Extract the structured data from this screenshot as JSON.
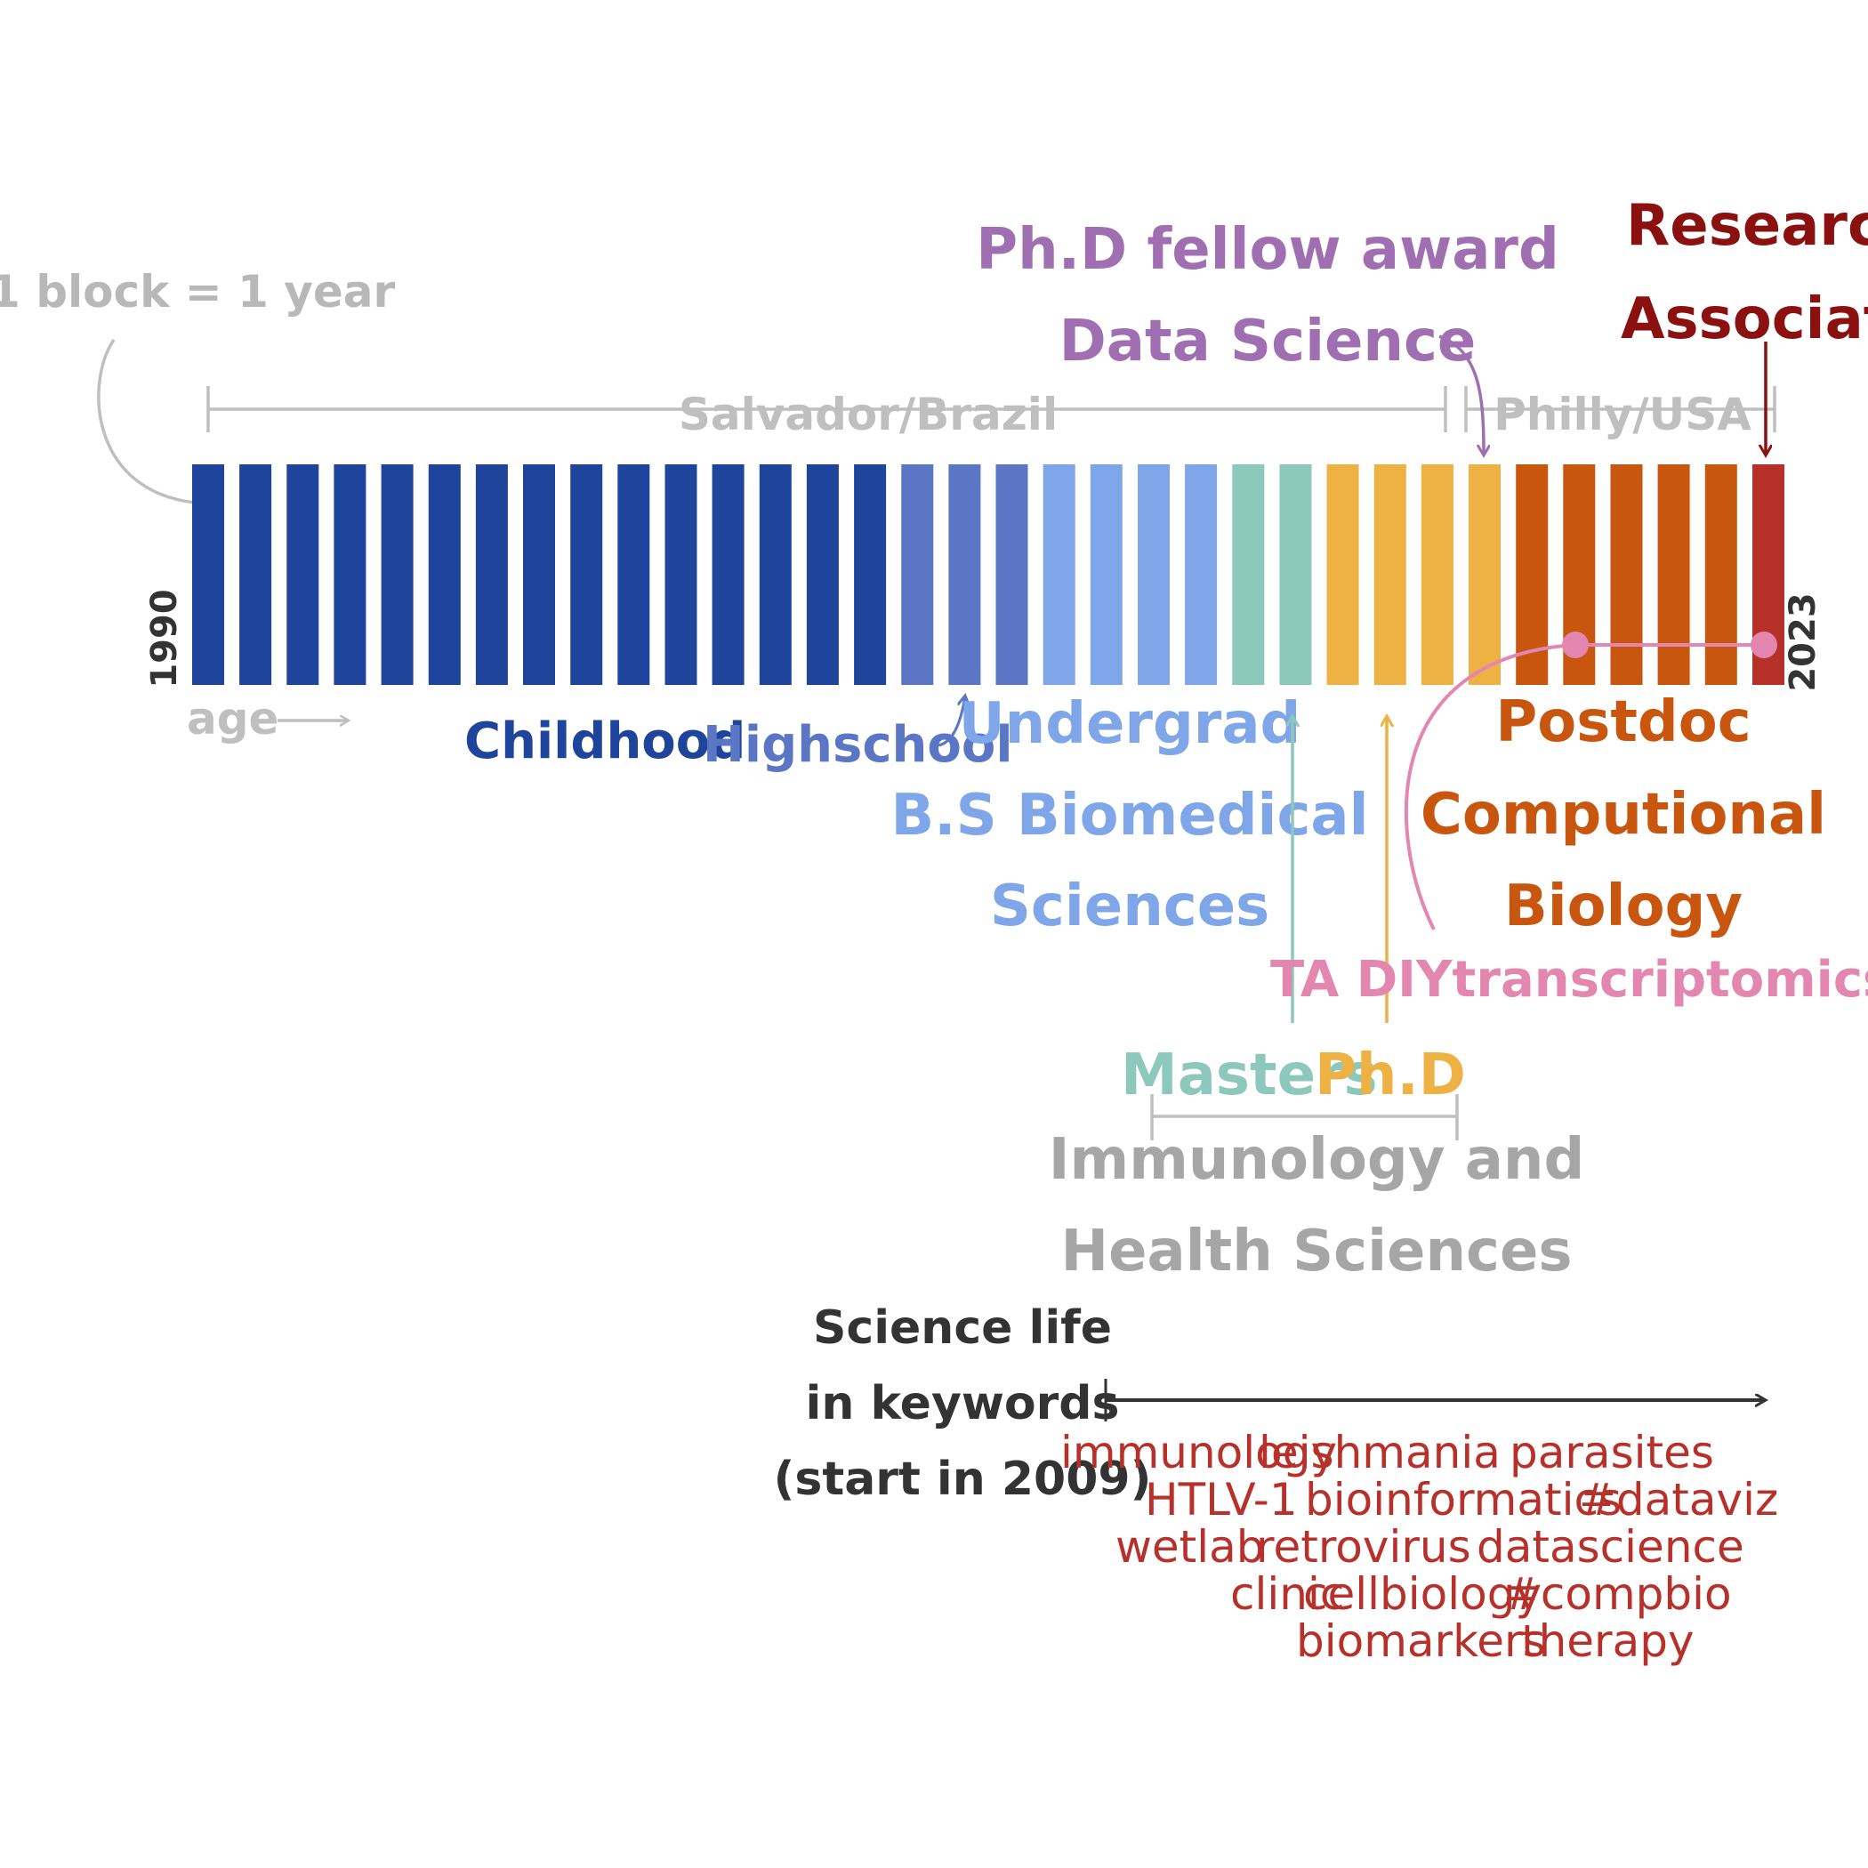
{
  "legend_note": "1 block = 1 year",
  "axis": {
    "start_year": "1990",
    "end_year": "2023",
    "age_label": "age"
  },
  "locations": [
    {
      "label": "Salvador/Brazil",
      "color": "#bfbfbf"
    },
    {
      "label": "Philly/USA",
      "color": "#bfbfbf"
    }
  ],
  "blocks": {
    "years": [
      1990,
      1991,
      1992,
      1993,
      1994,
      1995,
      1996,
      1997,
      1998,
      1999,
      2000,
      2001,
      2002,
      2003,
      2004,
      2005,
      2006,
      2007,
      2008,
      2009,
      2010,
      2011,
      2012,
      2013,
      2014,
      2015,
      2016,
      2017,
      2018,
      2019,
      2020,
      2021,
      2022,
      2023
    ],
    "colors": [
      "#1f449c",
      "#1f449c",
      "#1f449c",
      "#1f449c",
      "#1f449c",
      "#1f449c",
      "#1f449c",
      "#1f449c",
      "#1f449c",
      "#1f449c",
      "#1f449c",
      "#1f449c",
      "#1f449c",
      "#1f449c",
      "#1f449c",
      "#5a76c4",
      "#5a76c4",
      "#5a76c4",
      "#7ea6e8",
      "#7ea6e8",
      "#7ea6e8",
      "#7ea6e8",
      "#8cc8bb",
      "#8cc8bb",
      "#eeb143",
      "#eeb143",
      "#eeb143",
      "#eeb143",
      "#c9560f",
      "#c9560f",
      "#c9560f",
      "#c9560f",
      "#c9560f",
      "#b8302a"
    ]
  },
  "stages": {
    "childhood": {
      "label": "Childhood",
      "color": "#1f449c"
    },
    "highschool": {
      "label": "Highschool",
      "color": "#5a76c4"
    },
    "undergrad": {
      "label": "Undergrad",
      "line1": "B.S Biomedical",
      "line2": "Sciences",
      "color": "#7ea6e8"
    },
    "masters": {
      "label": "Masters",
      "color": "#8cc8bb"
    },
    "phd": {
      "label": "Ph.D",
      "color": "#eeb143"
    },
    "grad_program": {
      "line1": "Immunology and",
      "line2": "Health Sciences",
      "color": "#a6a6a6"
    },
    "postdoc": {
      "line1": "Postdoc",
      "line2": "Computional",
      "line3": "Biology",
      "color": "#c9560f"
    },
    "research": {
      "line1": "Research",
      "line2": "Associate",
      "color": "#8b1010"
    }
  },
  "awards": {
    "line1": "Ph.D fellow award",
    "line2": "Data Science",
    "color": "#a06fb2"
  },
  "ta_note": {
    "label": "TA DIYtranscriptomics.com",
    "color": "#e387b0"
  },
  "keywords": {
    "title_line1": "Science life",
    "title_line2": "in keywords",
    "title_line3": "(start in 2009)",
    "color": "#b8302a",
    "words": [
      "immunology",
      "leishmania",
      "parasites",
      "HTLV-1",
      "bioinformatics",
      "#dataviz",
      "wetlab",
      "retrovirus",
      "datascience",
      "clinic",
      "cellbiology",
      "#compbio",
      "biomarkers",
      "therapy"
    ]
  }
}
